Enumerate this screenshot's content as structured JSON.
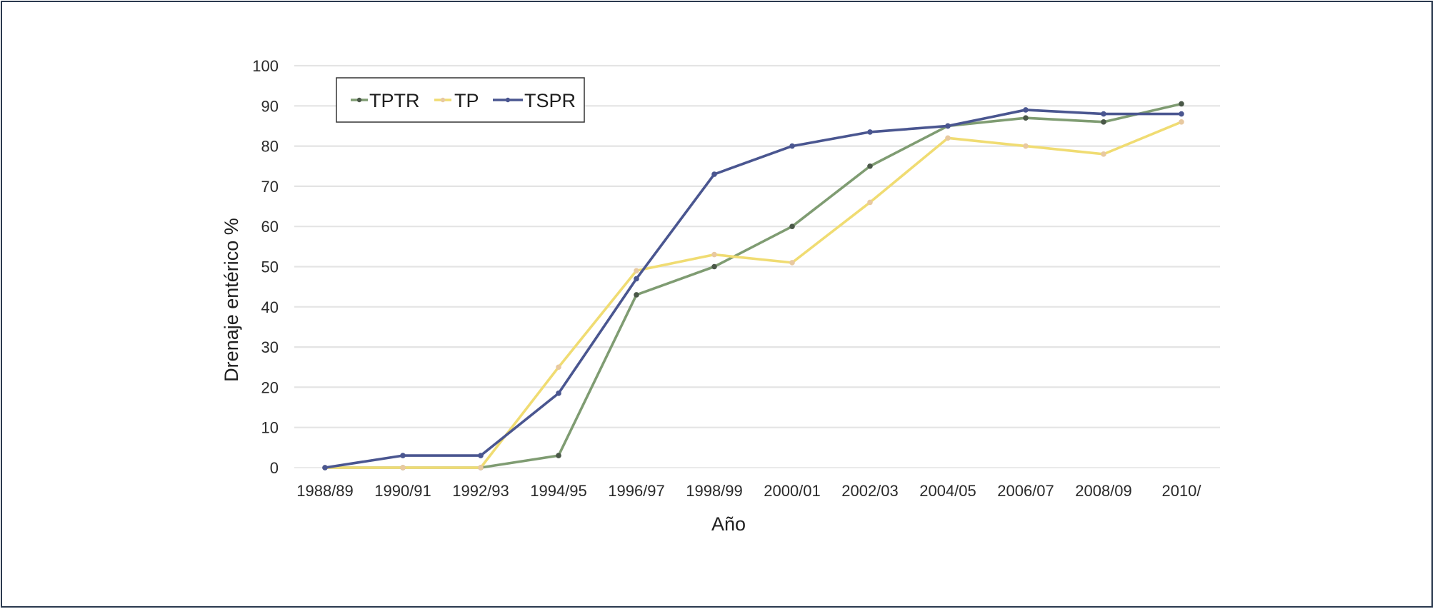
{
  "chart_data": {
    "type": "line",
    "title": "",
    "xlabel": "Año",
    "ylabel": "Drenaje entérico %",
    "ylim": [
      0,
      100
    ],
    "yticks": [
      0,
      10,
      20,
      30,
      40,
      50,
      60,
      70,
      80,
      90,
      100
    ],
    "x_tick_labels": [
      "1988/89",
      "1990/91",
      "1992/93",
      "1994/95",
      "1996/97",
      "1998/99",
      "2000/01",
      "2002/03",
      "2004/05",
      "2006/07",
      "2008/09",
      "2010/"
    ],
    "categories": [
      "1988/89",
      "1990/91",
      "1992/93",
      "1994/95",
      "1996/97",
      "1998/99",
      "2000/01",
      "2002/03",
      "2004/05",
      "2006/07",
      "2008/09",
      "2010/"
    ],
    "grid": true,
    "legend_position": "top-left",
    "series": [
      {
        "name": "TPTR",
        "color": "#7f9c72",
        "marker_color": "#4a5848",
        "values": [
          0,
          0,
          0,
          3,
          43,
          50,
          60,
          75,
          85,
          87,
          86,
          90.5
        ]
      },
      {
        "name": "TP",
        "color": "#f0dc72",
        "marker_color": "#e8c9a0",
        "values": [
          0,
          0,
          0,
          25,
          49,
          53,
          51,
          66,
          82,
          80,
          78,
          86
        ]
      },
      {
        "name": "TSPR",
        "color": "#4a5690",
        "marker_color": "#4a5690",
        "values": [
          0,
          3,
          3,
          18.5,
          47,
          73,
          80,
          83.5,
          85,
          89,
          88,
          88
        ]
      }
    ]
  }
}
